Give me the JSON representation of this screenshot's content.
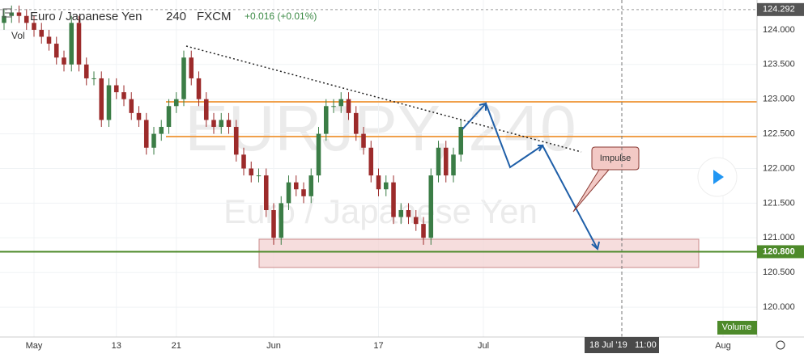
{
  "header": {
    "symbol": "Euro / Japanese Yen",
    "interval": "240",
    "source": "FXCM",
    "change": "+0.016 (+0.01%)",
    "volume_label": "Vol"
  },
  "watermark": {
    "ticker": "EURJPY, 240",
    "name": "Euro / Japanese Yen"
  },
  "callout": "Impulse",
  "volume_tag": "Volume",
  "crosshair_time": "18 Jul '19",
  "crosshair_clock": "11:00",
  "chart_data": {
    "type": "candlestick",
    "x": [
      0,
      1,
      2,
      3,
      4,
      5,
      6,
      7,
      8,
      9,
      10,
      11,
      12,
      13,
      14,
      15,
      16,
      17,
      18,
      19,
      20,
      21,
      22,
      23,
      24,
      25,
      26,
      27,
      28,
      29,
      30,
      31,
      32,
      33,
      34,
      35,
      36,
      37,
      38,
      39,
      40,
      41,
      42,
      43,
      44,
      45,
      46,
      47,
      48,
      49,
      50,
      51,
      52,
      53,
      54,
      55,
      56,
      57,
      58,
      59,
      60,
      61
    ],
    "open": [
      124.1,
      124.2,
      124.25,
      124.2,
      124.1,
      124.0,
      123.9,
      123.8,
      123.6,
      123.5,
      124.1,
      123.5,
      123.3,
      123.3,
      122.7,
      123.2,
      123.1,
      123.0,
      122.8,
      122.7,
      122.3,
      122.5,
      122.6,
      122.9,
      123.0,
      123.6,
      123.3,
      123.0,
      122.7,
      122.6,
      122.7,
      122.6,
      122.2,
      122.0,
      121.9,
      121.9,
      121.4,
      121.0,
      121.5,
      121.8,
      121.7,
      121.6,
      121.9,
      122.5,
      122.9,
      122.9,
      123.0,
      122.8,
      122.5,
      122.3,
      121.9,
      121.7,
      121.8,
      121.3,
      121.4,
      121.3,
      121.2,
      121.0,
      121.9,
      122.3,
      121.9,
      122.2
    ],
    "high": [
      124.3,
      124.35,
      124.35,
      124.3,
      124.2,
      124.1,
      124.0,
      123.9,
      123.7,
      124.2,
      124.2,
      123.6,
      123.4,
      123.4,
      123.3,
      123.3,
      123.2,
      123.1,
      122.9,
      122.8,
      122.6,
      122.7,
      123.0,
      123.1,
      123.7,
      123.7,
      123.4,
      123.1,
      122.8,
      122.8,
      122.8,
      122.7,
      122.3,
      122.1,
      122.0,
      122.0,
      121.5,
      121.6,
      121.9,
      121.9,
      121.8,
      122.0,
      122.6,
      123.0,
      123.0,
      123.1,
      123.1,
      122.9,
      122.6,
      122.4,
      122.0,
      121.9,
      121.9,
      121.5,
      121.5,
      121.4,
      121.3,
      122.0,
      122.4,
      122.4,
      122.3,
      122.7
    ],
    "low": [
      124.0,
      124.1,
      124.1,
      124.0,
      123.9,
      123.8,
      123.7,
      123.5,
      123.4,
      123.4,
      123.4,
      123.2,
      123.2,
      122.6,
      122.6,
      123.0,
      122.9,
      122.7,
      122.6,
      122.2,
      122.2,
      122.4,
      122.5,
      122.8,
      122.9,
      123.2,
      122.9,
      122.6,
      122.5,
      122.5,
      122.5,
      122.1,
      121.9,
      121.8,
      121.8,
      121.3,
      120.9,
      120.9,
      121.4,
      121.6,
      121.5,
      121.5,
      121.8,
      122.4,
      122.8,
      122.8,
      122.7,
      122.4,
      122.2,
      121.8,
      121.6,
      121.6,
      121.2,
      121.2,
      121.2,
      121.1,
      120.9,
      120.9,
      121.8,
      121.8,
      121.8,
      122.1
    ],
    "close": [
      124.2,
      124.25,
      124.2,
      124.1,
      124.0,
      123.9,
      123.8,
      123.6,
      123.5,
      124.1,
      123.5,
      123.3,
      123.3,
      122.7,
      123.2,
      123.1,
      123.0,
      122.8,
      122.7,
      122.3,
      122.5,
      122.6,
      122.9,
      123.0,
      123.6,
      123.3,
      123.0,
      122.7,
      122.6,
      122.7,
      122.6,
      122.2,
      122.0,
      121.9,
      121.9,
      121.4,
      121.0,
      121.5,
      121.8,
      121.7,
      121.6,
      121.9,
      122.5,
      122.9,
      122.9,
      123.0,
      122.8,
      122.5,
      122.3,
      121.9,
      121.7,
      121.8,
      121.3,
      121.4,
      121.3,
      121.2,
      121.0,
      121.9,
      122.3,
      121.9,
      122.2,
      122.6
    ],
    "up_color": "#3b7d46",
    "down_color": "#9c2b2b",
    "xlim": [
      -0.54,
      100.54
    ],
    "xticks": [
      {
        "value": 4,
        "label": "May"
      },
      {
        "value": 15,
        "label": "13"
      },
      {
        "value": 23,
        "label": "21"
      },
      {
        "value": 36,
        "label": "Jun"
      },
      {
        "value": 50,
        "label": "17"
      },
      {
        "value": 64,
        "label": "Jul"
      },
      {
        "value": 96,
        "label": "Aug"
      }
    ],
    "ylim": [
      119.57,
      124.43
    ],
    "yticks": [
      {
        "value": 124,
        "label": "124.000"
      },
      {
        "value": 123.5,
        "label": "123.500"
      },
      {
        "value": 123,
        "label": "123.000"
      },
      {
        "value": 122.5,
        "label": "122.500"
      },
      {
        "value": 122,
        "label": "122.000"
      },
      {
        "value": 121.5,
        "label": "121.500"
      },
      {
        "value": 121,
        "label": "121.000"
      },
      {
        "value": 120.5,
        "label": "120.500"
      },
      {
        "value": 120,
        "label": "120.000"
      }
    ],
    "grid": true,
    "last_price": {
      "value": 124.292,
      "label": "124.292"
    },
    "price_line": {
      "value": 120.8,
      "label": "120.800",
      "color": "#4d8a2a"
    }
  }
}
